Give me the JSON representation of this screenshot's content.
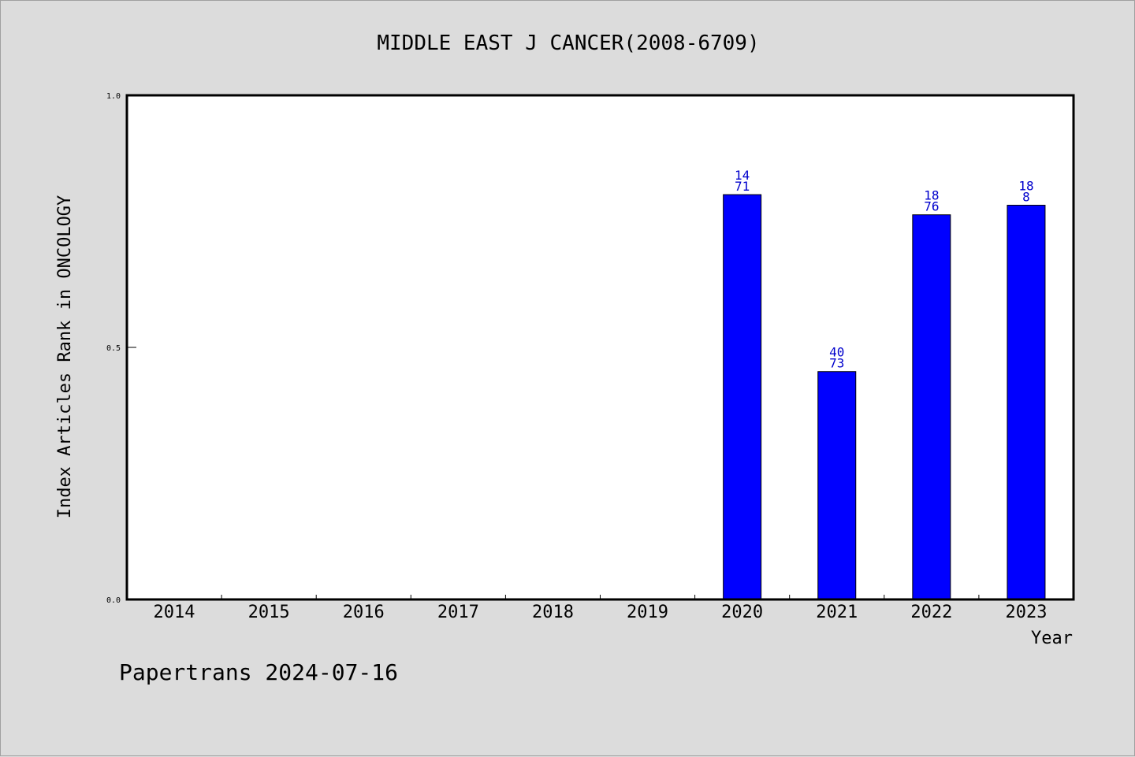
{
  "chart_data": {
    "type": "bar",
    "title": "MIDDLE EAST J CANCER(2008-6709)",
    "xlabel": "Year",
    "ylabel": "Index Articles Rank in ONCOLOGY",
    "categories": [
      "2014",
      "2015",
      "2016",
      "2017",
      "2018",
      "2019",
      "2020",
      "2021",
      "2022",
      "2023"
    ],
    "values": [
      null,
      null,
      null,
      null,
      null,
      null,
      0.803,
      0.452,
      0.763,
      0.782
    ],
    "bar_labels": [
      [
        "",
        ""
      ],
      [
        "",
        ""
      ],
      [
        "",
        ""
      ],
      [
        "",
        ""
      ],
      [
        "",
        ""
      ],
      [
        "",
        ""
      ],
      [
        "14",
        "71"
      ],
      [
        "40",
        "73"
      ],
      [
        "18",
        "76"
      ],
      [
        "18",
        "8"
      ]
    ],
    "ylim": [
      0,
      1
    ],
    "yticks": [
      "0.0",
      "0.5",
      "1.0"
    ],
    "ytick_values": [
      0,
      0.5,
      1
    ],
    "grid": false,
    "bar_color": "#0000ff",
    "label_color": "#0000cc"
  },
  "footer": "Papertrans 2024-07-16"
}
